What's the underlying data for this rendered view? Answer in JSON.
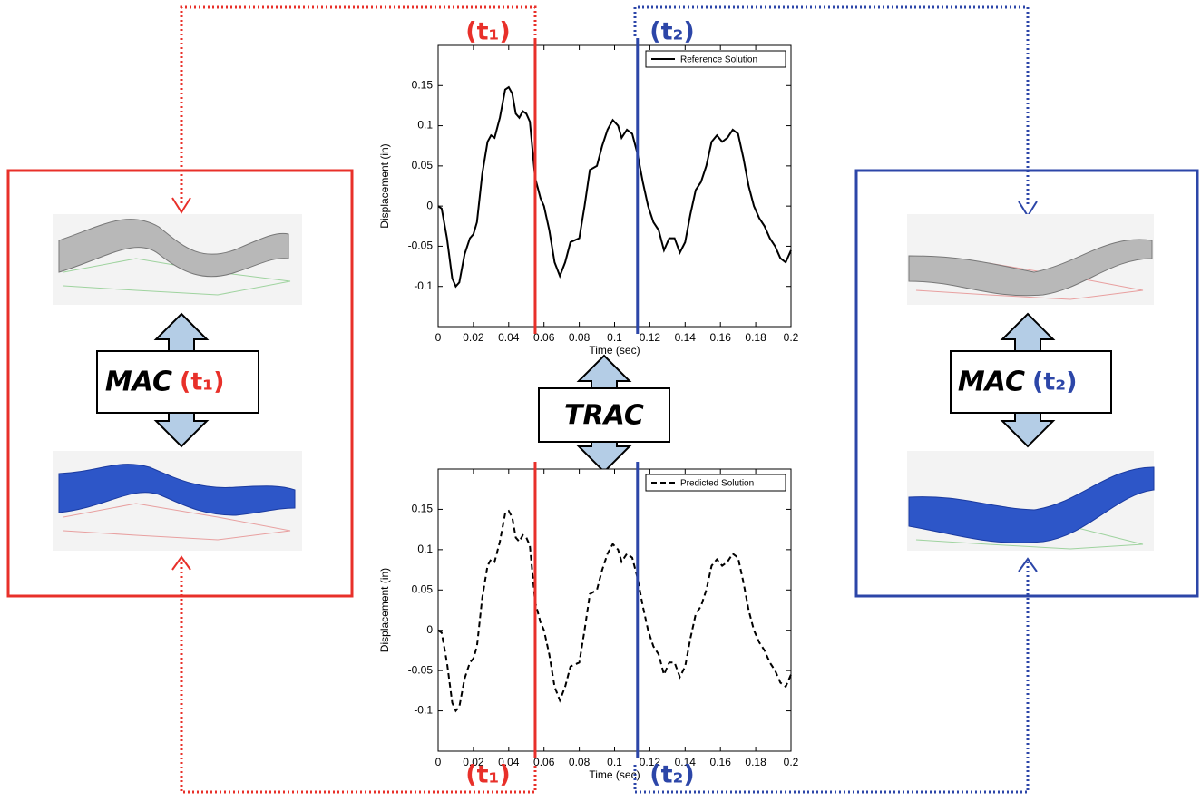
{
  "chart_data": [
    {
      "type": "line",
      "xlabel": "Time (sec)",
      "ylabel": "Displacement (in)",
      "xlim": [
        0,
        0.2
      ],
      "ylim": [
        -0.15,
        0.2
      ],
      "xticks": [
        0,
        0.02,
        0.04,
        0.06,
        0.08,
        0.1,
        0.12,
        0.14,
        0.16,
        0.18,
        0.2
      ],
      "yticks": [
        -0.1,
        -0.05,
        0,
        0.05,
        0.1,
        0.15
      ],
      "legend": "upper right",
      "vlines": [
        {
          "value": 0.055,
          "color": "#e8302a"
        },
        {
          "value": 0.113,
          "color": "#2c46a8"
        }
      ],
      "x": [
        0,
        0.002,
        0.005,
        0.008,
        0.01,
        0.012,
        0.015,
        0.018,
        0.02,
        0.022,
        0.025,
        0.028,
        0.03,
        0.032,
        0.035,
        0.038,
        0.04,
        0.042,
        0.044,
        0.046,
        0.048,
        0.05,
        0.052,
        0.055,
        0.058,
        0.06,
        0.063,
        0.066,
        0.069,
        0.072,
        0.075,
        0.078,
        0.08,
        0.083,
        0.086,
        0.09,
        0.093,
        0.096,
        0.099,
        0.102,
        0.104,
        0.107,
        0.11,
        0.113,
        0.116,
        0.119,
        0.122,
        0.125,
        0.128,
        0.131,
        0.134,
        0.137,
        0.14,
        0.143,
        0.146,
        0.149,
        0.152,
        0.155,
        0.158,
        0.161,
        0.164,
        0.167,
        0.17,
        0.173,
        0.176,
        0.179,
        0.182,
        0.185,
        0.188,
        0.191,
        0.194,
        0.197,
        0.2
      ],
      "series": [
        {
          "name": "Reference Solution",
          "color": "#000000",
          "linestyle": "solid",
          "values": [
            0,
            -0.003,
            -0.04,
            -0.09,
            -0.1,
            -0.095,
            -0.06,
            -0.04,
            -0.035,
            -0.02,
            0.04,
            0.08,
            0.088,
            0.085,
            0.11,
            0.145,
            0.148,
            0.14,
            0.115,
            0.11,
            0.118,
            0.115,
            0.105,
            0.035,
            0.01,
            0,
            -0.03,
            -0.07,
            -0.087,
            -0.07,
            -0.045,
            -0.042,
            -0.04,
            0,
            0.045,
            0.05,
            0.075,
            0.095,
            0.107,
            0.1,
            0.085,
            0.095,
            0.09,
            0.065,
            0.03,
            0,
            -0.02,
            -0.03,
            -0.055,
            -0.04,
            -0.04,
            -0.058,
            -0.045,
            -0.01,
            0.02,
            0.03,
            0.05,
            0.08,
            0.088,
            0.08,
            0.085,
            0.095,
            0.09,
            0.06,
            0.025,
            0,
            -0.015,
            -0.025,
            -0.04,
            -0.05,
            -0.065,
            -0.07,
            -0.055
          ]
        }
      ]
    },
    {
      "type": "line",
      "xlabel": "Time (sec)",
      "ylabel": "Displacement (in)",
      "xlim": [
        0,
        0.2
      ],
      "ylim": [
        -0.15,
        0.2
      ],
      "xticks": [
        0,
        0.02,
        0.04,
        0.06,
        0.08,
        0.1,
        0.12,
        0.14,
        0.16,
        0.18,
        0.2
      ],
      "yticks": [
        -0.1,
        -0.05,
        0,
        0.05,
        0.1,
        0.15
      ],
      "legend": "upper right",
      "vlines": [
        {
          "value": 0.055,
          "color": "#e8302a"
        },
        {
          "value": 0.113,
          "color": "#2c46a8"
        }
      ],
      "x": [
        0,
        0.002,
        0.005,
        0.008,
        0.01,
        0.012,
        0.015,
        0.018,
        0.02,
        0.022,
        0.025,
        0.028,
        0.03,
        0.032,
        0.035,
        0.038,
        0.04,
        0.042,
        0.044,
        0.046,
        0.048,
        0.05,
        0.052,
        0.055,
        0.058,
        0.06,
        0.063,
        0.066,
        0.069,
        0.072,
        0.075,
        0.078,
        0.08,
        0.083,
        0.086,
        0.09,
        0.093,
        0.096,
        0.099,
        0.102,
        0.104,
        0.107,
        0.11,
        0.113,
        0.116,
        0.119,
        0.122,
        0.125,
        0.128,
        0.131,
        0.134,
        0.137,
        0.14,
        0.143,
        0.146,
        0.149,
        0.152,
        0.155,
        0.158,
        0.161,
        0.164,
        0.167,
        0.17,
        0.173,
        0.176,
        0.179,
        0.182,
        0.185,
        0.188,
        0.191,
        0.194,
        0.197,
        0.2
      ],
      "series": [
        {
          "name": "Predicted Solution",
          "color": "#000000",
          "linestyle": "dashed",
          "values": [
            0,
            -0.003,
            -0.04,
            -0.09,
            -0.1,
            -0.095,
            -0.06,
            -0.04,
            -0.035,
            -0.02,
            0.04,
            0.08,
            0.088,
            0.085,
            0.11,
            0.145,
            0.148,
            0.14,
            0.115,
            0.11,
            0.118,
            0.115,
            0.105,
            0.035,
            0.01,
            0,
            -0.03,
            -0.07,
            -0.087,
            -0.07,
            -0.045,
            -0.042,
            -0.04,
            0,
            0.045,
            0.05,
            0.075,
            0.095,
            0.107,
            0.1,
            0.085,
            0.095,
            0.09,
            0.065,
            0.03,
            0,
            -0.02,
            -0.03,
            -0.055,
            -0.04,
            -0.04,
            -0.058,
            -0.045,
            -0.01,
            0.02,
            0.03,
            0.05,
            0.08,
            0.088,
            0.08,
            0.085,
            0.095,
            0.09,
            0.06,
            0.025,
            0,
            -0.015,
            -0.025,
            -0.04,
            -0.05,
            -0.065,
            -0.07,
            -0.055
          ]
        }
      ]
    }
  ],
  "diagram": {
    "top_labels": [
      "(t₁)",
      "(t₂)"
    ],
    "bottom_labels": [
      "(t₁)",
      "(t₂)"
    ],
    "mac_left": {
      "word": "MAC",
      "time": "(t₁)"
    },
    "mac_right": {
      "word": "MAC",
      "time": "(t₂)"
    },
    "trac": "TRAC"
  }
}
